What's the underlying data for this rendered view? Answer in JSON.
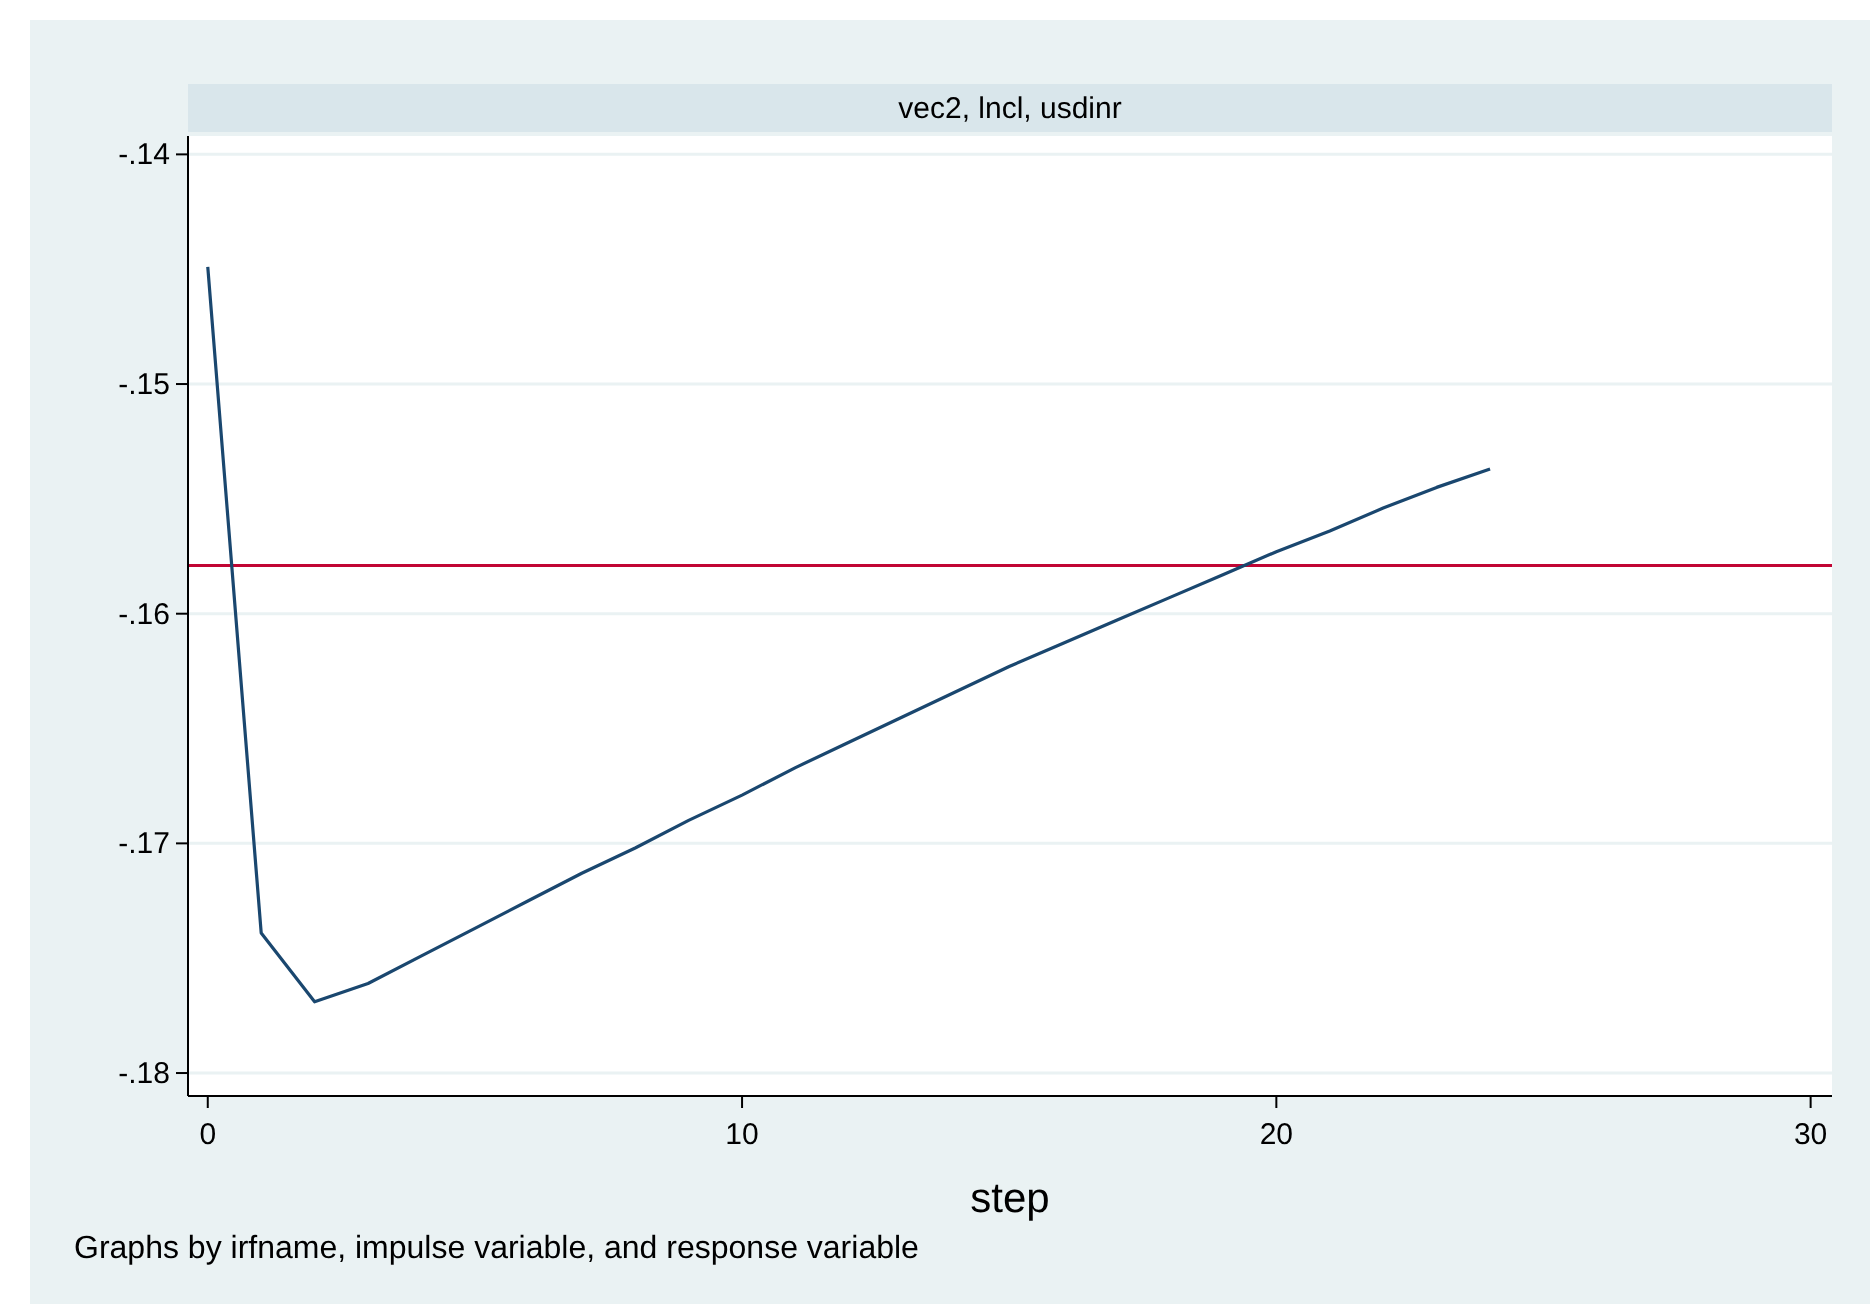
{
  "chart_data": {
    "type": "line",
    "title": "vec2, lncl, usdinr",
    "xlabel": "step",
    "annotations": [
      "Graphs by irfname, impulse variable, and response variable"
    ],
    "x": [
      0,
      1,
      2,
      3,
      4,
      5,
      6,
      7,
      8,
      9,
      10,
      11,
      12,
      13,
      14,
      15,
      16,
      17,
      18,
      19,
      20,
      21,
      22,
      23,
      24
    ],
    "series": [
      {
        "color": "#1a476f",
        "values": [
          -0.1449,
          -0.1739,
          -0.1769,
          -0.1761,
          -0.1749,
          -0.1737,
          -0.1725,
          -0.1713,
          -0.1702,
          -0.169,
          -0.1679,
          -0.1667,
          -0.1656,
          -0.1645,
          -0.1634,
          -0.1623,
          -0.1613,
          -0.1603,
          -0.1593,
          -0.1583,
          -0.1573,
          -0.1564,
          -0.1554,
          -0.1545,
          -0.1537
        ]
      }
    ],
    "xlim": [
      -0.37,
      30.4
    ],
    "xticks": [
      0,
      10,
      20,
      30
    ],
    "ylim": [
      -0.181,
      -0.1392
    ],
    "yticks": [
      {
        "value": -0.18,
        "label": "-.18"
      },
      {
        "value": -0.17,
        "label": "-.17"
      },
      {
        "value": -0.16,
        "label": "-.16"
      },
      {
        "value": -0.15,
        "label": "-.15"
      },
      {
        "value": -0.14,
        "label": "-.14"
      }
    ],
    "ref_lines": [
      {
        "axis": "y",
        "value": -0.1579,
        "color": "#c10534"
      }
    ],
    "grid": "y",
    "marker": "none",
    "line_style": "solid"
  }
}
